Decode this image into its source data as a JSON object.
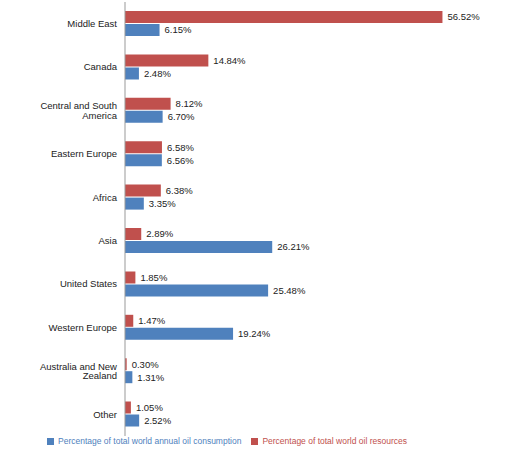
{
  "chart_data": {
    "type": "bar",
    "orientation": "horizontal",
    "categories": [
      "Middle East",
      "Canada",
      "Central and South America",
      "Eastern Europe",
      "Africa",
      "Asia",
      "United States",
      "Western Europe",
      "Australia and New Zealand",
      "Other"
    ],
    "series": [
      {
        "name": "Percentage of total world oil resources",
        "color": "#c0504d",
        "values": [
          56.52,
          14.84,
          8.12,
          6.58,
          6.38,
          2.89,
          1.85,
          1.47,
          0.3,
          1.05
        ],
        "value_labels": [
          "56.52%",
          "14.84%",
          "8.12%",
          "6.58%",
          "6.38%",
          "2.89%",
          "1.85%",
          "1.47%",
          "0.30%",
          "1.05%"
        ]
      },
      {
        "name": "Percentage of total world annual oil consumption",
        "color": "#4f81bd",
        "values": [
          6.15,
          2.48,
          6.7,
          6.56,
          3.35,
          26.21,
          25.48,
          19.24,
          1.31,
          2.52
        ],
        "value_labels": [
          "6.15%",
          "2.48%",
          "6.70%",
          "6.56%",
          "3.35%",
          "26.21%",
          "25.48%",
          "19.24%",
          "1.31%",
          "2.52%"
        ]
      }
    ],
    "xlim": [
      0,
      60
    ],
    "data_labels": true,
    "tick_labels": "y",
    "legend": "bottom"
  }
}
